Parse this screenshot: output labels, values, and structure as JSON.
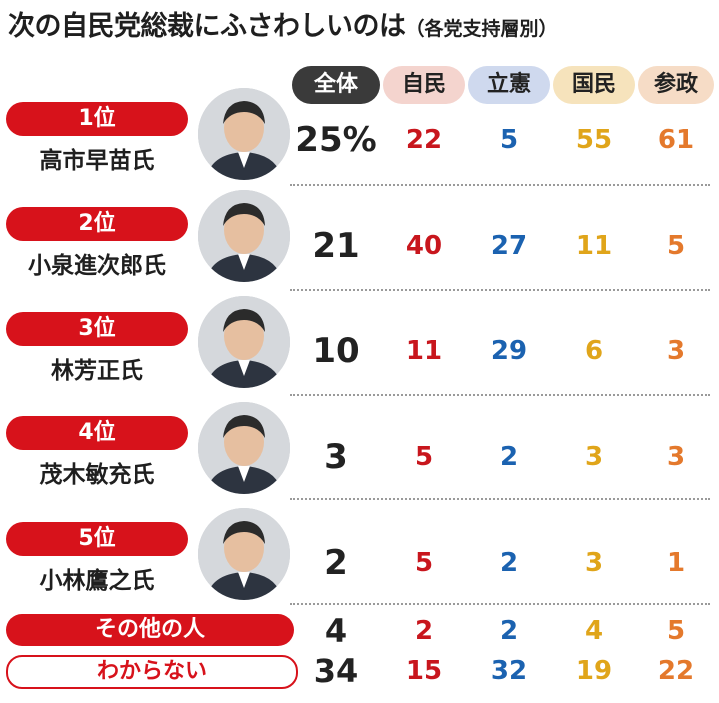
{
  "title": "次の自民党総裁にふさわしいのは",
  "subtitle": "（各党支持層別）",
  "columns": [
    {
      "label": "全体",
      "bg": "#3a3a3a",
      "fg": "#ffffff"
    },
    {
      "label": "自民",
      "bg": "#f4d4ce",
      "fg": "#222222"
    },
    {
      "label": "立憲",
      "bg": "#cfd9ee",
      "fg": "#222222"
    },
    {
      "label": "国民",
      "bg": "#f6e3bc",
      "fg": "#222222"
    },
    {
      "label": "参政",
      "bg": "#f6dcc6",
      "fg": "#222222"
    }
  ],
  "colors": {
    "all": "#222222",
    "jimin": "#c8161d",
    "rikken": "#1b62b0",
    "kokumin": "#e0a51a",
    "sansei": "#e4792c",
    "rank": "#d7121b"
  },
  "rows": [
    {
      "rank": "1位",
      "name": "高市早苗氏",
      "all": "25%",
      "jimin": "22",
      "rikken": "5",
      "kokumin": "55",
      "sansei": "61"
    },
    {
      "rank": "2位",
      "name": "小泉進次郎氏",
      "all": "21",
      "jimin": "40",
      "rikken": "27",
      "kokumin": "11",
      "sansei": "5"
    },
    {
      "rank": "3位",
      "name": "林芳正氏",
      "all": "10",
      "jimin": "11",
      "rikken": "29",
      "kokumin": "6",
      "sansei": "3"
    },
    {
      "rank": "4位",
      "name": "茂木敏充氏",
      "all": "3",
      "jimin": "5",
      "rikken": "2",
      "kokumin": "3",
      "sansei": "3"
    },
    {
      "rank": "5位",
      "name": "小林鷹之氏",
      "all": "2",
      "jimin": "5",
      "rikken": "2",
      "kokumin": "3",
      "sansei": "1"
    }
  ],
  "other": {
    "label": "その他の人",
    "all": "4",
    "jimin": "2",
    "rikken": "2",
    "kokumin": "4",
    "sansei": "5"
  },
  "unknown": {
    "label": "わからない",
    "all": "34",
    "jimin": "15",
    "rikken": "32",
    "kokumin": "19",
    "sansei": "22"
  },
  "chart_data": {
    "type": "table",
    "title": "次の自民党総裁にふさわしいのは",
    "subtitle": "（各党支持層別）",
    "columns": [
      "全体",
      "自民",
      "立憲",
      "国民",
      "参政"
    ],
    "rows": [
      {
        "label": "高市早苗氏",
        "rank": "1位",
        "values": [
          25,
          22,
          5,
          55,
          61
        ]
      },
      {
        "label": "小泉進次郎氏",
        "rank": "2位",
        "values": [
          21,
          40,
          27,
          11,
          5
        ]
      },
      {
        "label": "林芳正氏",
        "rank": "3位",
        "values": [
          10,
          11,
          29,
          6,
          3
        ]
      },
      {
        "label": "茂木敏充氏",
        "rank": "4位",
        "values": [
          3,
          5,
          2,
          3,
          3
        ]
      },
      {
        "label": "小林鷹之氏",
        "rank": "5位",
        "values": [
          2,
          5,
          2,
          3,
          1
        ]
      },
      {
        "label": "その他の人",
        "values": [
          4,
          2,
          2,
          4,
          5
        ]
      },
      {
        "label": "わからない",
        "values": [
          34,
          15,
          32,
          19,
          22
        ]
      }
    ],
    "unit": "%"
  }
}
